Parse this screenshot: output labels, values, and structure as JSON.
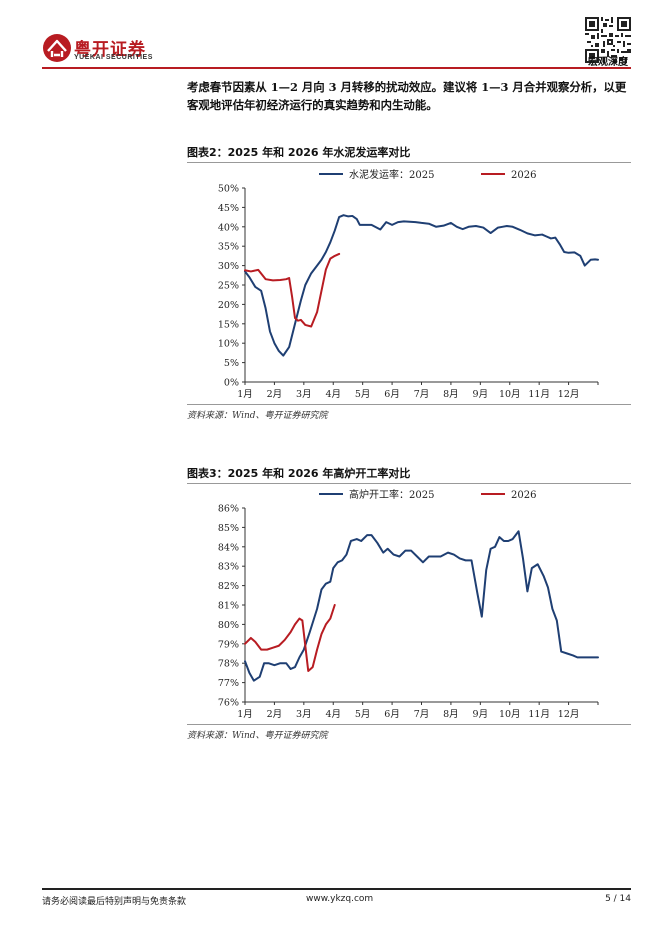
{
  "header": {
    "brand_cn": "粤开证券",
    "brand_en": "YUEKAI SECURITIES",
    "section": "宏观深度"
  },
  "body_text": "考虑春节因素从 1—2 月向 3 月转移的扰动效应。建议将 1—3 月合并观察分析，以更客观地评估年初经济运行的真实趋势和内生动能。",
  "chart_data": [
    {
      "type": "line",
      "title": "图表2：2025 年和 2026 年水泥发运率对比",
      "source": "资料来源：Wind、粤开证券研究院",
      "xlabel": "",
      "ylabel": "",
      "x_ticks": [
        "1月",
        "2月",
        "3月",
        "4月",
        "5月",
        "6月",
        "7月",
        "8月",
        "9月",
        "10月",
        "11月",
        "12月"
      ],
      "y_ticks": [
        "0%",
        "5%",
        "10%",
        "15%",
        "20%",
        "25%",
        "30%",
        "35%",
        "40%",
        "45%",
        "50%"
      ],
      "ylim": [
        0,
        50
      ],
      "xlim": [
        0,
        12
      ],
      "series": [
        {
          "name": "水泥发运率：2025",
          "color": "#1f3f73",
          "x": [
            0,
            0.15,
            0.35,
            0.55,
            0.7,
            0.85,
            1.0,
            1.15,
            1.3,
            1.5,
            1.7,
            1.8,
            1.9,
            2.05,
            2.25,
            2.45,
            2.6,
            2.75,
            2.9,
            3.05,
            3.2,
            3.35,
            3.5,
            3.65,
            3.8,
            3.9,
            4.05,
            4.3,
            4.6,
            4.8,
            5.0,
            5.2,
            5.4,
            5.6,
            5.8,
            6.0,
            6.25,
            6.5,
            6.75,
            7.0,
            7.2,
            7.4,
            7.6,
            7.85,
            8.1,
            8.35,
            8.6,
            8.75,
            8.9,
            9.1,
            9.35,
            9.6,
            9.85,
            10.1,
            10.25,
            10.4,
            10.55,
            10.7,
            10.85,
            11.0,
            11.2,
            11.4,
            11.55,
            11.75,
            11.9,
            12.0
          ],
          "y": [
            28.5,
            27,
            24.5,
            23.5,
            19,
            13,
            10,
            8,
            6.8,
            9,
            15,
            18,
            21,
            25,
            28,
            30,
            31.5,
            33.5,
            36,
            39,
            42.5,
            43,
            42.7,
            42.8,
            42,
            40.5,
            40.5,
            40.5,
            39.3,
            41.2,
            40.5,
            41.2,
            41.4,
            41.3,
            41.2,
            41,
            40.8,
            40,
            40.3,
            41,
            40,
            39.4,
            40,
            40.2,
            39.8,
            38.4,
            39.8,
            40,
            40.2,
            40,
            39.2,
            38.3,
            37.8,
            38,
            37.5,
            37,
            37.2,
            35.5,
            33.5,
            33.3,
            33.4,
            32.5,
            30,
            31.5,
            31.6,
            31.5
          ]
        },
        {
          "name": "2026",
          "color": "#b81c22",
          "x": [
            0,
            0.2,
            0.45,
            0.7,
            0.95,
            1.2,
            1.4,
            1.5,
            1.6,
            1.7,
            1.8,
            1.9,
            2.05,
            2.25,
            2.45,
            2.6,
            2.75,
            2.9,
            3.05,
            3.2
          ],
          "y": [
            28.8,
            28.5,
            28.9,
            26.5,
            26.2,
            26.3,
            26.5,
            26.8,
            22,
            16.5,
            15.8,
            16,
            14.7,
            14.3,
            18,
            23.5,
            29,
            31.8,
            32.5,
            33
          ]
        }
      ]
    },
    {
      "type": "line",
      "title": "图表3：2025 年和 2026 年高炉开工率对比",
      "source": "资料来源：Wind、粤开证券研究院",
      "xlabel": "",
      "ylabel": "",
      "x_ticks": [
        "1月",
        "2月",
        "3月",
        "4月",
        "5月",
        "6月",
        "7月",
        "8月",
        "9月",
        "10月",
        "11月",
        "12月"
      ],
      "y_ticks": [
        "76%",
        "77%",
        "78%",
        "79%",
        "80%",
        "81%",
        "82%",
        "83%",
        "84%",
        "85%",
        "86%"
      ],
      "ylim": [
        76,
        86
      ],
      "xlim": [
        0,
        12
      ],
      "series": [
        {
          "name": "高炉开工率：2025",
          "color": "#1f3f73",
          "x": [
            0,
            0.15,
            0.3,
            0.5,
            0.65,
            0.8,
            1.0,
            1.2,
            1.4,
            1.55,
            1.7,
            1.85,
            2.0,
            2.2,
            2.45,
            2.6,
            2.75,
            2.9,
            3.0,
            3.15,
            3.3,
            3.45,
            3.6,
            3.8,
            3.95,
            4.15,
            4.3,
            4.5,
            4.7,
            4.85,
            5.05,
            5.25,
            5.45,
            5.65,
            5.85,
            6.05,
            6.25,
            6.45,
            6.65,
            6.9,
            7.1,
            7.3,
            7.5,
            7.7,
            7.9,
            8.05,
            8.2,
            8.35,
            8.5,
            8.65,
            8.8,
            8.95,
            9.1,
            9.3,
            9.45,
            9.6,
            9.75,
            9.95,
            10.15,
            10.3,
            10.45,
            10.6,
            10.75,
            10.95,
            11.15,
            11.3,
            11.45,
            11.6,
            11.8,
            12.0
          ],
          "y": [
            78.1,
            77.5,
            77.1,
            77.3,
            78.0,
            78.0,
            77.9,
            78.0,
            78.0,
            77.7,
            77.8,
            78.3,
            78.7,
            79.6,
            80.8,
            81.8,
            82.1,
            82.2,
            82.9,
            83.2,
            83.3,
            83.6,
            84.3,
            84.4,
            84.3,
            84.6,
            84.6,
            84.2,
            83.7,
            83.9,
            83.6,
            83.5,
            83.8,
            83.8,
            83.5,
            83.2,
            83.5,
            83.5,
            83.5,
            83.7,
            83.6,
            83.4,
            83.3,
            83.3,
            81.6,
            80.4,
            82.8,
            83.9,
            84.0,
            84.5,
            84.3,
            84.3,
            84.4,
            84.8,
            83.4,
            81.7,
            82.9,
            83.1,
            82.5,
            81.9,
            80.8,
            80.2,
            78.6,
            78.5,
            78.4,
            78.3,
            78.3,
            78.3,
            78.3,
            78.3
          ]
        },
        {
          "name": "2026",
          "color": "#b81c22",
          "x": [
            0,
            0.2,
            0.35,
            0.55,
            0.75,
            0.95,
            1.15,
            1.35,
            1.55,
            1.7,
            1.85,
            1.95,
            2.05,
            2.15,
            2.3,
            2.45,
            2.6,
            2.75,
            2.9,
            3.05
          ],
          "y": [
            79.0,
            79.3,
            79.1,
            78.7,
            78.7,
            78.8,
            78.9,
            79.2,
            79.6,
            80.0,
            80.3,
            80.2,
            78.9,
            77.6,
            77.8,
            78.7,
            79.5,
            80.0,
            80.3,
            81.0
          ]
        }
      ]
    }
  ],
  "footer": {
    "disclaimer": "请务必阅读最后特别声明与免责条款",
    "website": "www.ykzq.com",
    "page": "5 / 14"
  }
}
